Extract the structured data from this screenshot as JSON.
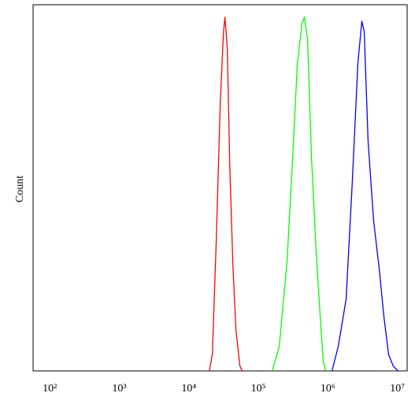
{
  "chart_data": {
    "type": "line",
    "y_label": "Count",
    "x_log": true,
    "xlim": [
      57.5,
      13800000
    ],
    "ylim": [
      0,
      100
    ],
    "xticks": [
      {
        "value": 100,
        "label": "10²"
      },
      {
        "value": 1000,
        "label": "10³"
      },
      {
        "value": 10000,
        "label": "10⁴"
      },
      {
        "value": 100000,
        "label": "10⁵"
      },
      {
        "value": 1000000,
        "label": "10⁶"
      },
      {
        "value": 10000000,
        "label": "10⁷"
      }
    ],
    "series": [
      {
        "color": "#ff0000",
        "x": [
          19700,
          21800,
          24900,
          28300,
          31500,
          33100,
          35800,
          38700,
          43000,
          47700,
          54300,
          58700
        ],
        "values": [
          0,
          4.5,
          36.6,
          73,
          92.5,
          96.6,
          88,
          57,
          29,
          11,
          1.3,
          0
        ]
      },
      {
        "color": "#00ff00",
        "x": [
          158000,
          200000,
          259000,
          311000,
          364000,
          426000,
          460000,
          511000,
          582000,
          681000,
          775000,
          860000,
          929000
        ],
        "values": [
          0,
          6.7,
          30,
          58,
          84,
          95,
          96.6,
          90.5,
          58,
          32,
          15,
          2.4,
          0
        ]
      },
      {
        "color": "#0000ff",
        "x": [
          1146000,
          1410000,
          1830000,
          2250000,
          2700000,
          3080000,
          3330000,
          3790000,
          4550000,
          5470000,
          6380000,
          7460000,
          8730000,
          10200000
        ],
        "values": [
          0,
          6.7,
          19.6,
          52,
          84,
          95.5,
          92.7,
          62.6,
          41,
          28,
          15,
          4.5,
          1.3,
          0
        ]
      }
    ]
  }
}
